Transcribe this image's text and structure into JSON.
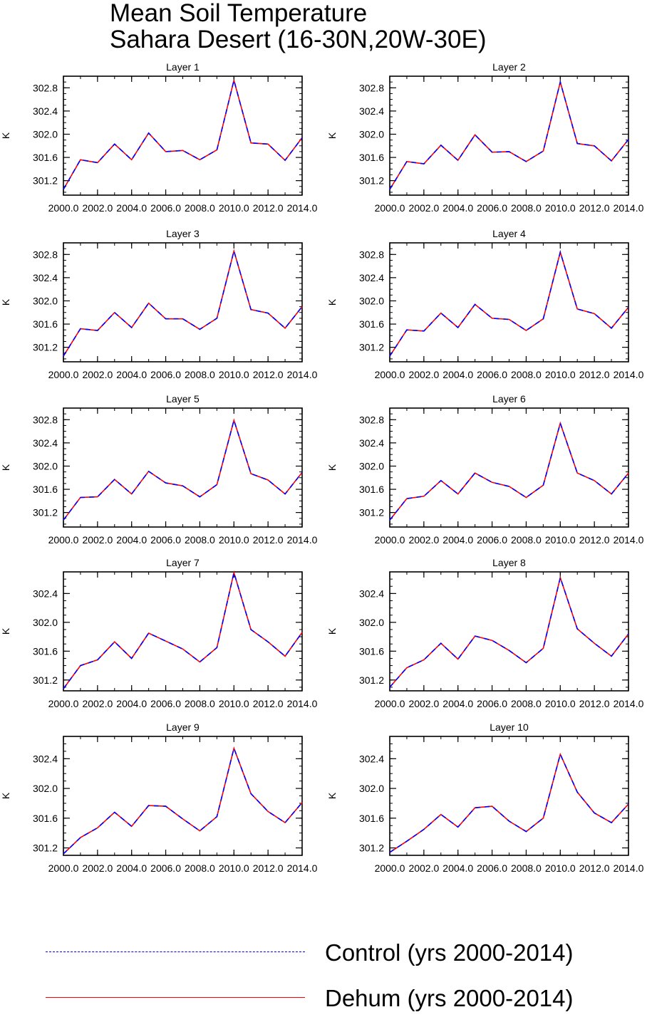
{
  "title": [
    "Mean Soil Temperature",
    "Sahara Desert (16-30N,20W-30E)"
  ],
  "legend": [
    {
      "label": "Control (yrs 2000-2014)",
      "color": "#0000ff",
      "style": "dashed"
    },
    {
      "label": "Dehum (yrs 2000-2014)",
      "color": "#ff0000",
      "style": "solid"
    }
  ],
  "chart_data": [
    {
      "type": "line",
      "title": "Layer 1",
      "ylabel": "K",
      "xlim": [
        2000,
        2014
      ],
      "ylim": [
        300.95,
        303.0
      ],
      "xticks": [
        2000,
        2002,
        2004,
        2006,
        2008,
        2010,
        2012,
        2014
      ],
      "xtick_labels": [
        "2000.0",
        "2002.0",
        "2004.0",
        "2006.0",
        "2008.0",
        "2010.0",
        "2012.0",
        "2014.0"
      ],
      "yticks": [
        301.2,
        301.6,
        302.0,
        302.4,
        302.8
      ],
      "ytick_labels": [
        "301.2",
        "301.6",
        "302.0",
        "302.4",
        "302.8"
      ],
      "x": [
        2000,
        2001,
        2002,
        2003,
        2004,
        2005,
        2006,
        2007,
        2008,
        2009,
        2010,
        2011,
        2012,
        2013,
        2014
      ],
      "series": [
        {
          "name": "Control (yrs 2000-2014)",
          "values": [
            301.05,
            301.56,
            301.51,
            301.83,
            301.56,
            302.02,
            301.7,
            301.72,
            301.56,
            301.73,
            302.93,
            301.85,
            301.83,
            301.55,
            301.94
          ]
        },
        {
          "name": "Dehum (yrs 2000-2014)",
          "values": [
            301.05,
            301.56,
            301.51,
            301.83,
            301.56,
            302.02,
            301.7,
            301.72,
            301.56,
            301.73,
            302.93,
            301.85,
            301.83,
            301.55,
            301.94
          ]
        }
      ]
    },
    {
      "type": "line",
      "title": "Layer 2",
      "ylabel": "K",
      "xlim": [
        2000,
        2014
      ],
      "ylim": [
        300.95,
        303.0
      ],
      "xticks": [
        2000,
        2002,
        2004,
        2006,
        2008,
        2010,
        2012,
        2014
      ],
      "xtick_labels": [
        "2000.0",
        "2002.0",
        "2004.0",
        "2006.0",
        "2008.0",
        "2010.0",
        "2012.0",
        "2014.0"
      ],
      "yticks": [
        301.2,
        301.6,
        302.0,
        302.4,
        302.8
      ],
      "ytick_labels": [
        "301.2",
        "301.6",
        "302.0",
        "302.4",
        "302.8"
      ],
      "x": [
        2000,
        2001,
        2002,
        2003,
        2004,
        2005,
        2006,
        2007,
        2008,
        2009,
        2010,
        2011,
        2012,
        2013,
        2014
      ],
      "series": [
        {
          "name": "Control (yrs 2000-2014)",
          "values": [
            301.05,
            301.53,
            301.49,
            301.81,
            301.55,
            301.99,
            301.69,
            301.7,
            301.53,
            301.71,
            302.9,
            301.84,
            301.8,
            301.54,
            301.91
          ]
        },
        {
          "name": "Dehum (yrs 2000-2014)",
          "values": [
            301.05,
            301.53,
            301.49,
            301.81,
            301.55,
            301.99,
            301.69,
            301.7,
            301.53,
            301.71,
            302.9,
            301.84,
            301.8,
            301.54,
            301.91
          ]
        }
      ]
    },
    {
      "type": "line",
      "title": "Layer 3",
      "ylabel": "K",
      "xlim": [
        2000,
        2014
      ],
      "ylim": [
        300.95,
        303.0
      ],
      "xticks": [
        2000,
        2002,
        2004,
        2006,
        2008,
        2010,
        2012,
        2014
      ],
      "xtick_labels": [
        "2000.0",
        "2002.0",
        "2004.0",
        "2006.0",
        "2008.0",
        "2010.0",
        "2012.0",
        "2014.0"
      ],
      "yticks": [
        301.2,
        301.6,
        302.0,
        302.4,
        302.8
      ],
      "ytick_labels": [
        "301.2",
        "301.6",
        "302.0",
        "302.4",
        "302.8"
      ],
      "x": [
        2000,
        2001,
        2002,
        2003,
        2004,
        2005,
        2006,
        2007,
        2008,
        2009,
        2010,
        2011,
        2012,
        2013,
        2014
      ],
      "series": [
        {
          "name": "Control (yrs 2000-2014)",
          "values": [
            301.05,
            301.52,
            301.49,
            301.8,
            301.54,
            301.96,
            301.69,
            301.69,
            301.51,
            301.7,
            302.86,
            301.85,
            301.79,
            301.53,
            301.9
          ]
        },
        {
          "name": "Dehum (yrs 2000-2014)",
          "values": [
            301.05,
            301.52,
            301.49,
            301.8,
            301.54,
            301.96,
            301.69,
            301.69,
            301.51,
            301.7,
            302.86,
            301.85,
            301.79,
            301.53,
            301.9
          ]
        }
      ]
    },
    {
      "type": "line",
      "title": "Layer 4",
      "ylabel": "K",
      "xlim": [
        2000,
        2014
      ],
      "ylim": [
        300.95,
        303.0
      ],
      "xticks": [
        2000,
        2002,
        2004,
        2006,
        2008,
        2010,
        2012,
        2014
      ],
      "xtick_labels": [
        "2000.0",
        "2002.0",
        "2004.0",
        "2006.0",
        "2008.0",
        "2010.0",
        "2012.0",
        "2014.0"
      ],
      "yticks": [
        301.2,
        301.6,
        302.0,
        302.4,
        302.8
      ],
      "ytick_labels": [
        "301.2",
        "301.6",
        "302.0",
        "302.4",
        "302.8"
      ],
      "x": [
        2000,
        2001,
        2002,
        2003,
        2004,
        2005,
        2006,
        2007,
        2008,
        2009,
        2010,
        2011,
        2012,
        2013,
        2014
      ],
      "series": [
        {
          "name": "Control (yrs 2000-2014)",
          "values": [
            301.05,
            301.5,
            301.48,
            301.79,
            301.54,
            301.94,
            301.7,
            301.68,
            301.49,
            301.69,
            302.84,
            301.86,
            301.78,
            301.53,
            301.89
          ]
        },
        {
          "name": "Dehum (yrs 2000-2014)",
          "values": [
            301.05,
            301.5,
            301.48,
            301.79,
            301.54,
            301.94,
            301.7,
            301.68,
            301.49,
            301.69,
            302.84,
            301.86,
            301.78,
            301.53,
            301.89
          ]
        }
      ]
    },
    {
      "type": "line",
      "title": "Layer 5",
      "ylabel": "K",
      "xlim": [
        2000,
        2014
      ],
      "ylim": [
        300.95,
        303.0
      ],
      "xticks": [
        2000,
        2002,
        2004,
        2006,
        2008,
        2010,
        2012,
        2014
      ],
      "xtick_labels": [
        "2000.0",
        "2002.0",
        "2004.0",
        "2006.0",
        "2008.0",
        "2010.0",
        "2012.0",
        "2014.0"
      ],
      "yticks": [
        301.2,
        301.6,
        302.0,
        302.4,
        302.8
      ],
      "ytick_labels": [
        "301.2",
        "301.6",
        "302.0",
        "302.4",
        "302.8"
      ],
      "x": [
        2000,
        2001,
        2002,
        2003,
        2004,
        2005,
        2006,
        2007,
        2008,
        2009,
        2010,
        2011,
        2012,
        2013,
        2014
      ],
      "series": [
        {
          "name": "Control (yrs 2000-2014)",
          "values": [
            301.07,
            301.46,
            301.47,
            301.77,
            301.52,
            301.91,
            301.71,
            301.66,
            301.47,
            301.68,
            302.79,
            301.87,
            301.76,
            301.52,
            301.89
          ]
        },
        {
          "name": "Dehum (yrs 2000-2014)",
          "values": [
            301.07,
            301.46,
            301.47,
            301.77,
            301.52,
            301.91,
            301.71,
            301.66,
            301.47,
            301.68,
            302.79,
            301.87,
            301.76,
            301.52,
            301.89
          ]
        }
      ]
    },
    {
      "type": "line",
      "title": "Layer 6",
      "ylabel": "K",
      "xlim": [
        2000,
        2014
      ],
      "ylim": [
        300.95,
        303.0
      ],
      "xticks": [
        2000,
        2002,
        2004,
        2006,
        2008,
        2010,
        2012,
        2014
      ],
      "xtick_labels": [
        "2000.0",
        "2002.0",
        "2004.0",
        "2006.0",
        "2008.0",
        "2010.0",
        "2012.0",
        "2014.0"
      ],
      "yticks": [
        301.2,
        301.6,
        302.0,
        302.4,
        302.8
      ],
      "ytick_labels": [
        "301.2",
        "301.6",
        "302.0",
        "302.4",
        "302.8"
      ],
      "x": [
        2000,
        2001,
        2002,
        2003,
        2004,
        2005,
        2006,
        2007,
        2008,
        2009,
        2010,
        2011,
        2012,
        2013,
        2014
      ],
      "series": [
        {
          "name": "Control (yrs 2000-2014)",
          "values": [
            301.07,
            301.44,
            301.48,
            301.75,
            301.52,
            301.88,
            301.72,
            301.65,
            301.46,
            301.67,
            302.74,
            301.88,
            301.75,
            301.52,
            301.88
          ]
        },
        {
          "name": "Dehum (yrs 2000-2014)",
          "values": [
            301.07,
            301.44,
            301.48,
            301.75,
            301.52,
            301.88,
            301.72,
            301.65,
            301.46,
            301.67,
            302.74,
            301.88,
            301.75,
            301.52,
            301.88
          ]
        }
      ]
    },
    {
      "type": "line",
      "title": "Layer 7",
      "ylabel": "K",
      "xlim": [
        2000,
        2014
      ],
      "ylim": [
        301.05,
        302.7
      ],
      "xticks": [
        2000,
        2002,
        2004,
        2006,
        2008,
        2010,
        2012,
        2014
      ],
      "xtick_labels": [
        "2000.0",
        "2002.0",
        "2004.0",
        "2006.0",
        "2008.0",
        "2010.0",
        "2012.0",
        "2014.0"
      ],
      "yticks": [
        301.2,
        301.6,
        302.0,
        302.4
      ],
      "ytick_labels": [
        "301.2",
        "301.6",
        "302.0",
        "302.4"
      ],
      "x": [
        2000,
        2001,
        2002,
        2003,
        2004,
        2005,
        2006,
        2007,
        2008,
        2009,
        2010,
        2011,
        2012,
        2013,
        2014
      ],
      "series": [
        {
          "name": "Control (yrs 2000-2014)",
          "values": [
            301.08,
            301.4,
            301.48,
            301.73,
            301.5,
            301.85,
            301.74,
            301.63,
            301.45,
            301.65,
            302.69,
            301.9,
            301.73,
            301.53,
            301.86
          ]
        },
        {
          "name": "Dehum (yrs 2000-2014)",
          "values": [
            301.08,
            301.4,
            301.48,
            301.73,
            301.5,
            301.85,
            301.74,
            301.63,
            301.45,
            301.65,
            302.69,
            301.9,
            301.73,
            301.53,
            301.86
          ]
        }
      ]
    },
    {
      "type": "line",
      "title": "Layer 8",
      "ylabel": "K",
      "xlim": [
        2000,
        2014
      ],
      "ylim": [
        301.05,
        302.7
      ],
      "xticks": [
        2000,
        2002,
        2004,
        2006,
        2008,
        2010,
        2012,
        2014
      ],
      "xtick_labels": [
        "2000.0",
        "2002.0",
        "2004.0",
        "2006.0",
        "2008.0",
        "2010.0",
        "2012.0",
        "2014.0"
      ],
      "yticks": [
        301.2,
        301.6,
        302.0,
        302.4
      ],
      "ytick_labels": [
        "301.2",
        "301.6",
        "302.0",
        "302.4"
      ],
      "x": [
        2000,
        2001,
        2002,
        2003,
        2004,
        2005,
        2006,
        2007,
        2008,
        2009,
        2010,
        2011,
        2012,
        2013,
        2014
      ],
      "series": [
        {
          "name": "Control (yrs 2000-2014)",
          "values": [
            301.1,
            301.37,
            301.48,
            301.71,
            301.49,
            301.81,
            301.75,
            301.61,
            301.44,
            301.64,
            302.62,
            301.91,
            301.71,
            301.53,
            301.84
          ]
        },
        {
          "name": "Dehum (yrs 2000-2014)",
          "values": [
            301.1,
            301.37,
            301.48,
            301.71,
            301.49,
            301.81,
            301.75,
            301.61,
            301.44,
            301.64,
            302.62,
            301.91,
            301.71,
            301.53,
            301.84
          ]
        }
      ]
    },
    {
      "type": "line",
      "title": "Layer 9",
      "ylabel": "K",
      "xlim": [
        2000,
        2014
      ],
      "ylim": [
        301.1,
        302.7
      ],
      "xticks": [
        2000,
        2002,
        2004,
        2006,
        2008,
        2010,
        2012,
        2014
      ],
      "xtick_labels": [
        "2000.0",
        "2002.0",
        "2004.0",
        "2006.0",
        "2008.0",
        "2010.0",
        "2012.0",
        "2014.0"
      ],
      "yticks": [
        301.2,
        301.6,
        302.0,
        302.4
      ],
      "ytick_labels": [
        "301.2",
        "301.6",
        "302.0",
        "302.4"
      ],
      "x": [
        2000,
        2001,
        2002,
        2003,
        2004,
        2005,
        2006,
        2007,
        2008,
        2009,
        2010,
        2011,
        2012,
        2013,
        2014
      ],
      "series": [
        {
          "name": "Control (yrs 2000-2014)",
          "values": [
            301.12,
            301.34,
            301.47,
            301.68,
            301.49,
            301.77,
            301.76,
            301.59,
            301.43,
            301.62,
            302.54,
            301.93,
            301.69,
            301.54,
            301.81
          ]
        },
        {
          "name": "Dehum (yrs 2000-2014)",
          "values": [
            301.12,
            301.34,
            301.47,
            301.68,
            301.49,
            301.77,
            301.76,
            301.59,
            301.43,
            301.62,
            302.54,
            301.93,
            301.69,
            301.54,
            301.81
          ]
        }
      ]
    },
    {
      "type": "line",
      "title": "Layer 10",
      "ylabel": "K",
      "xlim": [
        2000,
        2014
      ],
      "ylim": [
        301.1,
        302.7
      ],
      "xticks": [
        2000,
        2002,
        2004,
        2006,
        2008,
        2010,
        2012,
        2014
      ],
      "xtick_labels": [
        "2000.0",
        "2002.0",
        "2004.0",
        "2006.0",
        "2008.0",
        "2010.0",
        "2012.0",
        "2014.0"
      ],
      "yticks": [
        301.2,
        301.6,
        302.0,
        302.4
      ],
      "ytick_labels": [
        "301.2",
        "301.6",
        "302.0",
        "302.4"
      ],
      "x": [
        2000,
        2001,
        2002,
        2003,
        2004,
        2005,
        2006,
        2007,
        2008,
        2009,
        2010,
        2011,
        2012,
        2013,
        2014
      ],
      "series": [
        {
          "name": "Control (yrs 2000-2014)",
          "values": [
            301.14,
            301.29,
            301.45,
            301.65,
            301.48,
            301.74,
            301.76,
            301.56,
            301.42,
            301.6,
            302.46,
            301.95,
            301.67,
            301.54,
            301.79
          ]
        },
        {
          "name": "Dehum (yrs 2000-2014)",
          "values": [
            301.14,
            301.29,
            301.45,
            301.65,
            301.48,
            301.74,
            301.76,
            301.56,
            301.42,
            301.6,
            302.46,
            301.95,
            301.67,
            301.54,
            301.79
          ]
        }
      ]
    }
  ]
}
